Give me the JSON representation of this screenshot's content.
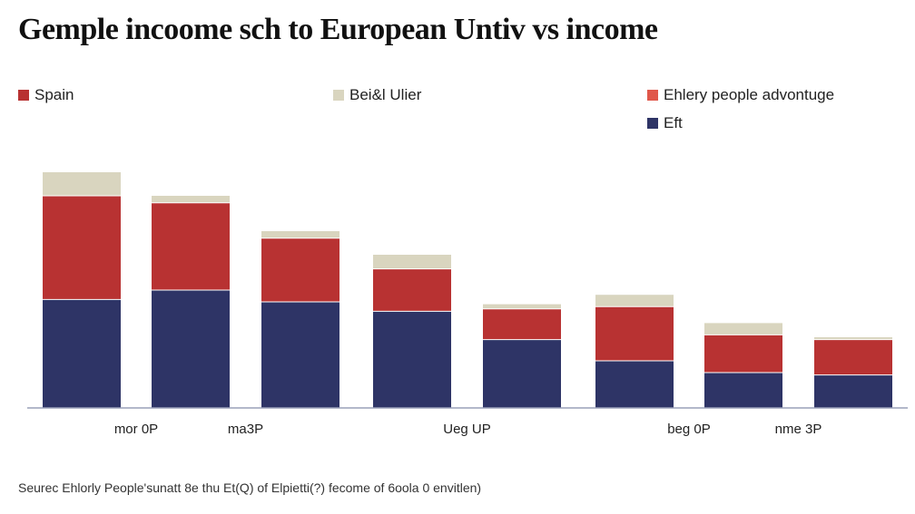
{
  "title": "Gemple incoome sch to European Untiv vs income",
  "source": "Seurec  Ehlorly People'sunatt 8e thu Et(Q) of Elpietti(?) fecome of 6oola 0 envitlen)",
  "legend": [
    {
      "label": "Spain",
      "color": "#b83232"
    },
    {
      "label": "Bei&l Ulier",
      "color": "#d9d5bf"
    },
    {
      "label": "Ehlery people advontuge",
      "color": "#e0574a"
    },
    {
      "label": "Eft",
      "color": "#2e3466"
    }
  ],
  "colors": {
    "base": "#2e3466",
    "middle": "#b83232",
    "top": "#d9d5bf",
    "axis": "#9aa0b8"
  },
  "chart_data": {
    "type": "bar",
    "stacked": true,
    "categories": [
      "",
      "",
      "",
      "",
      "",
      "",
      "",
      ""
    ],
    "tick_labels": [
      {
        "index": 0.5,
        "text": "mor 0P"
      },
      {
        "index": 1.5,
        "text": "ma3P"
      },
      {
        "index": 3.5,
        "text": "Ueg UP"
      },
      {
        "index": 5.5,
        "text": "beg 0P"
      },
      {
        "index": 6.5,
        "text": "nme 3P"
      }
    ],
    "series": [
      {
        "name": "Eft",
        "values": [
          46,
          50,
          45,
          41,
          29,
          20,
          15,
          14
        ]
      },
      {
        "name": "Spain",
        "values": [
          44,
          37,
          27,
          18,
          13,
          23,
          16,
          15
        ]
      },
      {
        "name": "Bei&l Ulier",
        "values": [
          10,
          3,
          3,
          6,
          2,
          5,
          5,
          1
        ]
      }
    ],
    "ylim": [
      0,
      100
    ],
    "grid": false,
    "legend_position": "top"
  }
}
